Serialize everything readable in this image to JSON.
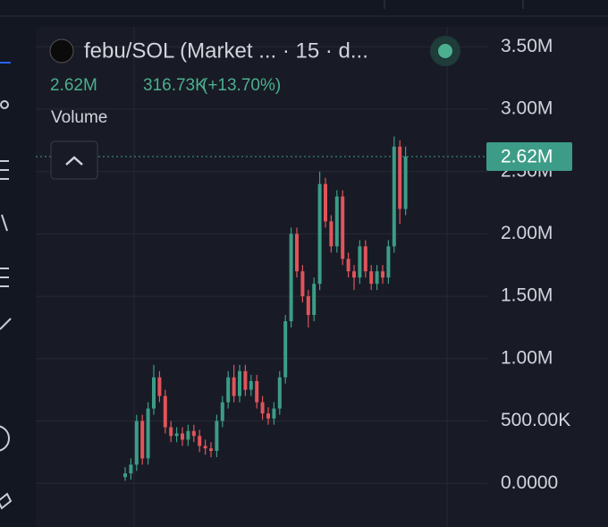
{
  "chart_data": {
    "type": "candlestick",
    "title": "febu/SOL (Market ...  · 15 · d...",
    "header_stats": [
      "2.62M",
      "316.73K",
      "(+13.70%)"
    ],
    "pane_label": "Volume",
    "up_color": "#3d9c87",
    "down_color": "#e0545a",
    "grid": true,
    "categories": [
      null,
      null,
      null,
      null,
      null,
      null,
      null,
      null,
      null,
      null,
      null,
      null,
      null,
      null,
      null,
      null,
      null,
      null,
      null,
      null,
      null,
      null,
      null,
      null,
      null,
      null,
      null,
      null,
      null,
      null,
      null,
      null,
      null,
      null,
      null,
      null,
      null,
      null,
      null,
      null,
      null,
      null,
      null,
      null,
      null,
      null,
      null,
      null,
      null,
      null
    ],
    "open": [
      50000,
      80000,
      150000,
      500000,
      200000,
      600000,
      850000,
      700000,
      450000,
      380000,
      400000,
      350000,
      420000,
      380000,
      300000,
      280000,
      260000,
      500000,
      650000,
      850000,
      700000,
      900000,
      750000,
      820000,
      650000,
      560000,
      520000,
      600000,
      850000,
      1300000,
      2000000,
      1700000,
      1500000,
      1350000,
      1600000,
      2400000,
      2100000,
      1900000,
      2300000,
      1800000,
      1700000,
      1650000,
      1900000,
      1700000,
      1600000,
      1700000,
      1650000,
      1900000,
      2700000,
      2200000
    ],
    "high": [
      130000,
      200000,
      550000,
      550000,
      650000,
      950000,
      900000,
      750000,
      500000,
      450000,
      450000,
      470000,
      470000,
      430000,
      350000,
      330000,
      550000,
      700000,
      900000,
      950000,
      950000,
      950000,
      870000,
      870000,
      700000,
      610000,
      650000,
      900000,
      1350000,
      2050000,
      2050000,
      1750000,
      1550000,
      1650000,
      2500000,
      2450000,
      2150000,
      2350000,
      2350000,
      1850000,
      1750000,
      1950000,
      1950000,
      1750000,
      1750000,
      1750000,
      1950000,
      2780000,
      2750000,
      2700000
    ],
    "low": [
      20000,
      30000,
      100000,
      150000,
      150000,
      550000,
      650000,
      400000,
      330000,
      330000,
      300000,
      300000,
      330000,
      250000,
      230000,
      210000,
      210000,
      450000,
      600000,
      650000,
      650000,
      700000,
      700000,
      600000,
      510000,
      470000,
      470000,
      550000,
      800000,
      1250000,
      1650000,
      1450000,
      1250000,
      1300000,
      1550000,
      2050000,
      1850000,
      1850000,
      1750000,
      1650000,
      1550000,
      1600000,
      1650000,
      1550000,
      1550000,
      1600000,
      1600000,
      1850000,
      2080000,
      2150000
    ],
    "close": [
      80000,
      150000,
      500000,
      200000,
      600000,
      850000,
      700000,
      450000,
      380000,
      400000,
      350000,
      420000,
      380000,
      300000,
      280000,
      260000,
      500000,
      650000,
      850000,
      700000,
      900000,
      750000,
      820000,
      650000,
      560000,
      520000,
      600000,
      850000,
      1300000,
      2000000,
      1700000,
      1500000,
      1350000,
      1600000,
      2400000,
      2100000,
      1900000,
      2300000,
      1800000,
      1700000,
      1650000,
      1900000,
      1700000,
      1600000,
      1700000,
      1650000,
      1900000,
      2700000,
      2200000,
      2620000
    ],
    "last_value": 2620000,
    "last_value_label": "2.62M",
    "ylim": [
      -350000,
      3660000
    ],
    "yticks": [
      {
        "value": 3500000,
        "label": "3.50M"
      },
      {
        "value": 3000000,
        "label": "3.00M"
      },
      {
        "value": 2500000,
        "label": "2.50M"
      },
      {
        "value": 2000000,
        "label": "2.00M"
      },
      {
        "value": 1500000,
        "label": "1.50M"
      },
      {
        "value": 1000000,
        "label": "1.00M"
      },
      {
        "value": 500000,
        "label": "500.00K"
      },
      {
        "value": 0,
        "label": "0.0000"
      }
    ]
  }
}
